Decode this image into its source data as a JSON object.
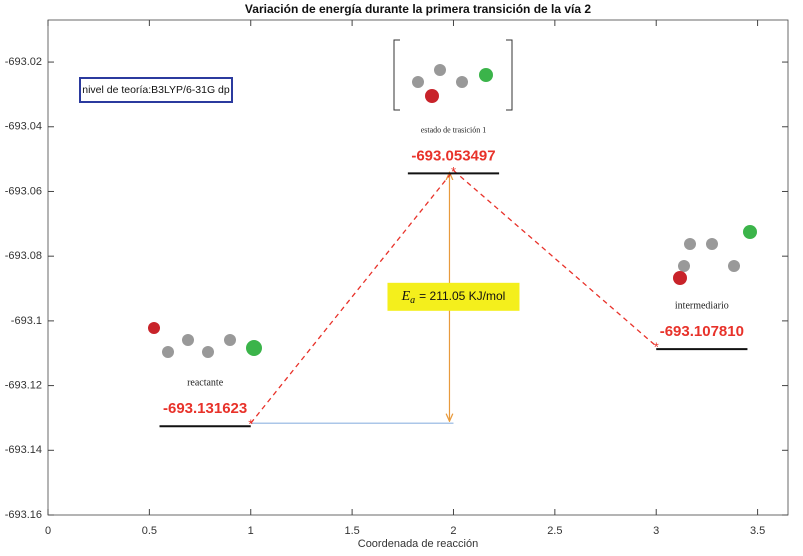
{
  "chart_data": {
    "type": "line",
    "title": "Variación de energía durante  la primera transición de la vía 2",
    "xlabel": "Coordenada de reacción",
    "x": [
      1,
      2,
      3
    ],
    "values": [
      -693.131623,
      -693.053497,
      -693.10781
    ],
    "value_labels": [
      "-693.131623",
      "-693.053497",
      "-693.107810"
    ],
    "point_labels": [
      "reactante",
      "estado de trasición 1",
      "intermediario"
    ],
    "color": "#e8322a",
    "xlim": [
      0,
      3.65
    ],
    "xticks": [
      0,
      0.5,
      1,
      1.5,
      2,
      2.5,
      3,
      3.5
    ],
    "ylim": [
      -693.16,
      -693.007
    ],
    "yticks": [
      -693.02,
      -693.04,
      -693.06,
      -693.08,
      -693.1,
      -693.12,
      -693.14,
      -693.16
    ],
    "theory_note": "nivel de teoría:B3LYP/6-31G dp",
    "activation": {
      "symbol": "E",
      "subscript": "a",
      "text": "= 211.05 KJ/mol"
    }
  }
}
